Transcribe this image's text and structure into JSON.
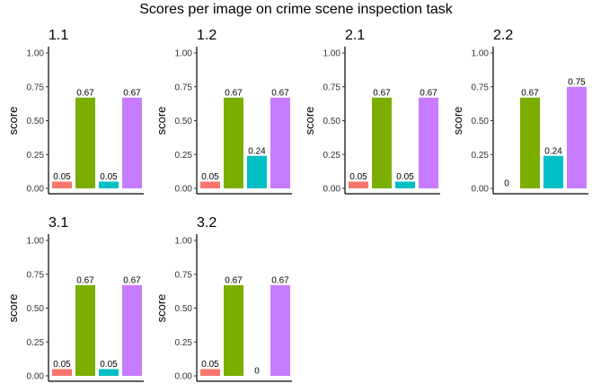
{
  "chart_data": {
    "type": "bar",
    "title": "Scores per image on crime scene inspection task",
    "ylabel": "score",
    "ylim": [
      0,
      1
    ],
    "yticks": [
      "0.00",
      "0.25",
      "0.50",
      "0.75",
      "1.00"
    ],
    "grid": false,
    "series_colors": [
      "#F8766D",
      "#7CAE00",
      "#00BFC4",
      "#C77CFF"
    ],
    "panels": [
      {
        "title": "1.1",
        "values": [
          0.05,
          0.67,
          0.05,
          0.67
        ],
        "labels": [
          "0.05",
          "0.67",
          "0.05",
          "0.67"
        ]
      },
      {
        "title": "1.2",
        "values": [
          0.05,
          0.67,
          0.24,
          0.67
        ],
        "labels": [
          "0.05",
          "0.67",
          "0.24",
          "0.67"
        ]
      },
      {
        "title": "2.1",
        "values": [
          0.05,
          0.67,
          0.05,
          0.67
        ],
        "labels": [
          "0.05",
          "0.67",
          "0.05",
          "0.67"
        ]
      },
      {
        "title": "2.2",
        "values": [
          0,
          0.67,
          0.24,
          0.75
        ],
        "labels": [
          "0",
          "0.67",
          "0.24",
          "0.75"
        ]
      },
      {
        "title": "3.1",
        "values": [
          0.05,
          0.67,
          0.05,
          0.67
        ],
        "labels": [
          "0.05",
          "0.67",
          "0.05",
          "0.67"
        ]
      },
      {
        "title": "3.2",
        "values": [
          0.05,
          0.67,
          0,
          0.67
        ],
        "labels": [
          "0.05",
          "0.67",
          "0",
          "0.67"
        ]
      }
    ]
  }
}
